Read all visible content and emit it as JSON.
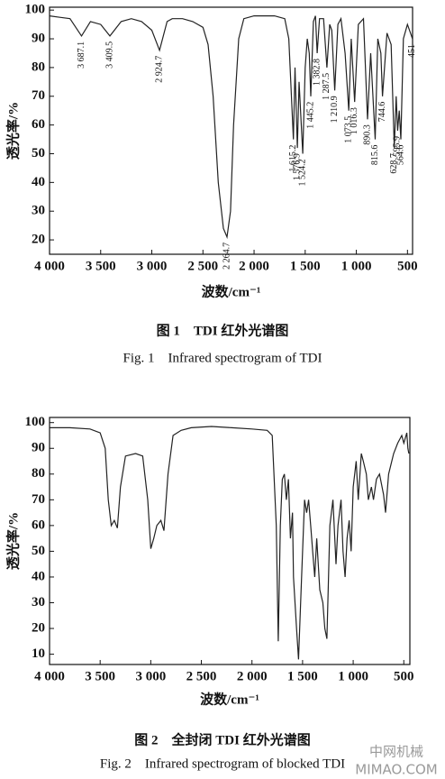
{
  "chart_data": [
    {
      "type": "line",
      "x_label": "波数/cm⁻¹",
      "y_label": "透光率/%",
      "caption_cn": "图 1    TDI 红外光谱图",
      "caption_en": "Fig. 1    Infrared spectrogram of TDI",
      "color": "#222222",
      "xlim": [
        4000,
        450
      ],
      "ylim": [
        15,
        101
      ],
      "xticks": [
        {
          "value": 4000,
          "label": "4 000"
        },
        {
          "value": 3500,
          "label": "3 500"
        },
        {
          "value": 3000,
          "label": "3 000"
        },
        {
          "value": 2500,
          "label": "2 500"
        },
        {
          "value": 2000,
          "label": "2 000"
        },
        {
          "value": 1500,
          "label": "1 500"
        },
        {
          "value": 1000,
          "label": "1 000"
        },
        500
      ],
      "yticks": [
        20,
        30,
        40,
        50,
        60,
        70,
        80,
        90,
        100
      ],
      "x": [
        4000,
        3900,
        3800,
        3687.1,
        3600,
        3500,
        3409.5,
        3300,
        3200,
        3100,
        3000,
        2924.7,
        2850,
        2800,
        2700,
        2600,
        2500,
        2450,
        2400,
        2350,
        2300,
        2264.7,
        2230,
        2200,
        2150,
        2100,
        2000,
        1900,
        1800,
        1700,
        1660,
        1615.2,
        1600,
        1576.9,
        1560,
        1524.2,
        1500,
        1480,
        1460,
        1445.2,
        1420,
        1400,
        1382.8,
        1360,
        1320,
        1287.5,
        1260,
        1240,
        1210.9,
        1180,
        1150,
        1110,
        1073.5,
        1050,
        1016.3,
        980,
        930,
        890.3,
        860,
        815.6,
        790,
        760,
        744.6,
        700,
        660,
        628.7,
        610,
        595.9,
        580,
        564.6,
        540,
        500,
        470,
        451
      ],
      "values": [
        98,
        97.5,
        97,
        91,
        96,
        95,
        91,
        96,
        97,
        96,
        93,
        86,
        96,
        97,
        97,
        96,
        94,
        88,
        70,
        40,
        24,
        21,
        30,
        60,
        90,
        97,
        98,
        98,
        98,
        97,
        90,
        55,
        80,
        52,
        75,
        50,
        80,
        90,
        85,
        70,
        96,
        98,
        85,
        97,
        97,
        80,
        95,
        93,
        72,
        95,
        97,
        85,
        65,
        90,
        68,
        95,
        97,
        62,
        85,
        55,
        90,
        85,
        70,
        92,
        88,
        52,
        70,
        58,
        65,
        55,
        90,
        95,
        92,
        90
      ],
      "annotations": [
        {
          "x": 3687.1,
          "label": "3 687.1"
        },
        {
          "x": 3409.5,
          "label": "3 409.5"
        },
        {
          "x": 2924.7,
          "label": "2 924.7"
        },
        {
          "x": 2264.7,
          "label": "2 264.7"
        },
        {
          "x": 1615.2,
          "label": "1 615.2"
        },
        {
          "x": 1576.9,
          "label": "1 576.9"
        },
        {
          "x": 1524.2,
          "label": "1 524.2"
        },
        {
          "x": 1445.2,
          "label": "1 445.2"
        },
        {
          "x": 1382.8,
          "label": "1 382.8"
        },
        {
          "x": 1287.5,
          "label": "1 287.5"
        },
        {
          "x": 1210.9,
          "label": "1 210.9"
        },
        {
          "x": 1073.5,
          "label": "1 073.5"
        },
        {
          "x": 1016.3,
          "label": "1 016.3"
        },
        {
          "x": 890.3,
          "label": "890.3"
        },
        {
          "x": 815.6,
          "label": "815.6"
        },
        {
          "x": 744.6,
          "label": "744.6"
        },
        {
          "x": 628.7,
          "label": "628.7"
        },
        {
          "x": 595.9,
          "label": "595.9"
        },
        {
          "x": 564.6,
          "label": "564.6"
        },
        {
          "x": 451,
          "label": "451"
        }
      ]
    },
    {
      "type": "line",
      "x_label": "波数/cm⁻¹",
      "y_label": "透光率/%",
      "caption_cn": "图 2    全封闭 TDI 红外光谱图",
      "caption_en": "Fig. 2    Infrared spectrogram of blocked TDI",
      "color": "#222222",
      "xlim": [
        4000,
        440
      ],
      "ylim": [
        6,
        102
      ],
      "xticks": [
        {
          "value": 4000,
          "label": "4 000"
        },
        {
          "value": 3500,
          "label": "3 500"
        },
        {
          "value": 3000,
          "label": "3 000"
        },
        {
          "value": 2500,
          "label": "2 500"
        },
        {
          "value": 2000,
          "label": "2 000"
        },
        {
          "value": 1500,
          "label": "1 500"
        },
        {
          "value": 1000,
          "label": "1 000"
        },
        500
      ],
      "yticks": [
        10,
        20,
        30,
        40,
        50,
        60,
        70,
        80,
        90,
        100
      ],
      "x": [
        4000,
        3800,
        3600,
        3500,
        3450,
        3420,
        3390,
        3360,
        3330,
        3300,
        3250,
        3150,
        3080,
        3030,
        3000,
        2970,
        2940,
        2900,
        2870,
        2830,
        2780,
        2700,
        2600,
        2400,
        2200,
        2000,
        1850,
        1800,
        1760,
        1740,
        1720,
        1700,
        1680,
        1660,
        1640,
        1620,
        1600,
        1590,
        1560,
        1540,
        1510,
        1480,
        1460,
        1440,
        1420,
        1400,
        1380,
        1360,
        1330,
        1300,
        1280,
        1260,
        1230,
        1200,
        1170,
        1150,
        1120,
        1100,
        1080,
        1060,
        1040,
        1020,
        1000,
        970,
        950,
        920,
        900,
        870,
        850,
        820,
        800,
        770,
        740,
        700,
        680,
        650,
        600,
        560,
        520,
        500,
        470,
        460,
        450
      ],
      "values": [
        98,
        98,
        97.5,
        96,
        90,
        70,
        60,
        62,
        59,
        75,
        87,
        88,
        87,
        70,
        51,
        55,
        60,
        62,
        58,
        80,
        95,
        97,
        98,
        98.5,
        98,
        97.5,
        97,
        95,
        60,
        15,
        60,
        78,
        80,
        70,
        78,
        55,
        65,
        40,
        20,
        8,
        40,
        70,
        65,
        70,
        60,
        50,
        40,
        55,
        35,
        30,
        20,
        16,
        60,
        70,
        45,
        60,
        70,
        50,
        40,
        55,
        62,
        50,
        75,
        85,
        70,
        88,
        85,
        80,
        70,
        75,
        70,
        78,
        80,
        72,
        65,
        80,
        88,
        92,
        95,
        92,
        96,
        90,
        88
      ]
    }
  ],
  "watermark": {
    "cn": "中网机械",
    "en": "MIMAO.COM"
  }
}
